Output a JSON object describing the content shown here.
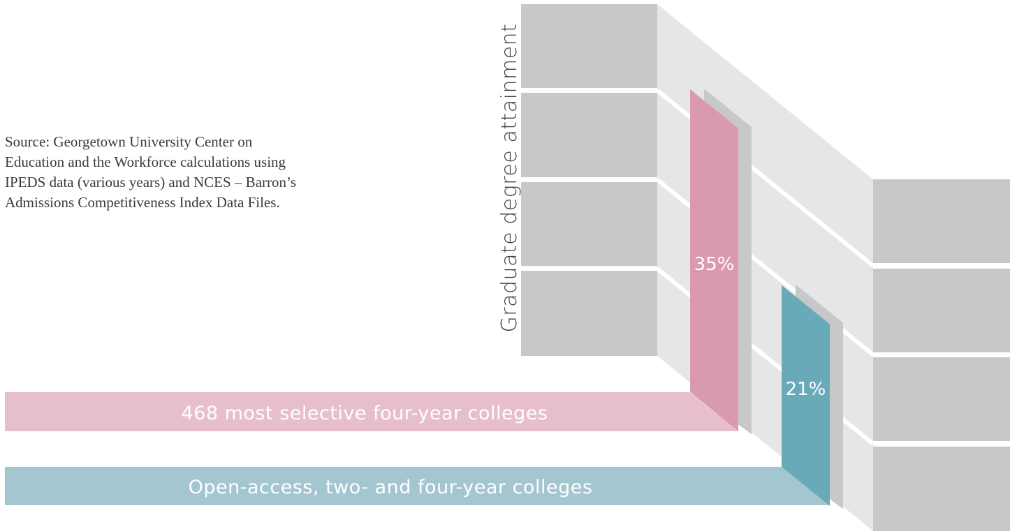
{
  "source_note": {
    "lines": [
      "Source: Georgetown University Center on",
      "Education and the Workforce calculations using",
      "IPEDS data (various years) and NCES – Barron’s",
      "Admissions Competitiveness Index Data Files."
    ]
  },
  "chart_data": {
    "type": "bar",
    "title": "",
    "ylabel": "Graduate degree attainment",
    "xlabel": "",
    "categories": [
      "468 most selective four-year colleges",
      "Open-access, two- and four-year colleges"
    ],
    "values": [
      35,
      21
    ],
    "value_labels": [
      "35%",
      "21%"
    ],
    "unit": "%",
    "colors": {
      "selective": "#d999ae",
      "selective_band": "#e7bfcc",
      "open_access": "#69aab9",
      "open_access_band": "#a3c6d1",
      "block": "#c8c8ca",
      "side": "#e6e6e8",
      "text_on_color": "#ffffff"
    }
  }
}
